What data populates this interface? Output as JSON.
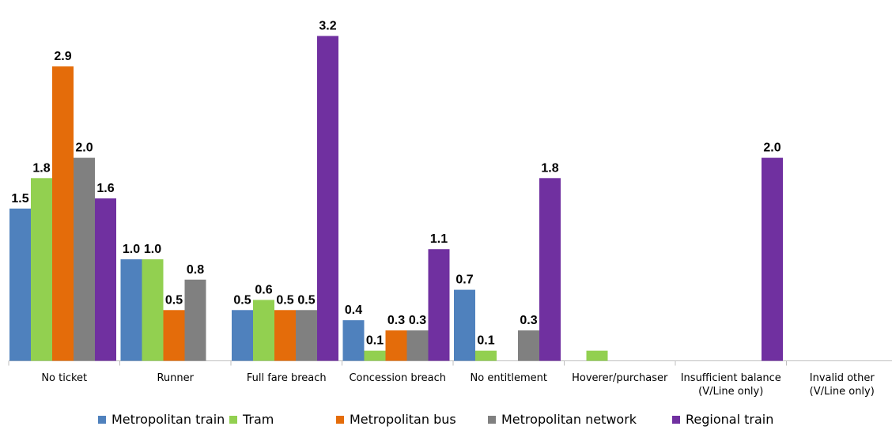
{
  "chart_data": {
    "type": "bar",
    "title": "",
    "xlabel": "",
    "ylabel": "",
    "ylim": [
      0,
      3.2
    ],
    "grid": false,
    "legend_position": "bottom",
    "categories": [
      [
        "No ticket"
      ],
      [
        "Runner"
      ],
      [
        "Full fare breach"
      ],
      [
        "Concession breach"
      ],
      [
        "No entitlement"
      ],
      [
        "Hoverer/purchaser"
      ],
      [
        "Insufficient balance",
        "(V/Line only)"
      ],
      [
        "Invalid other",
        "(V/Line only)"
      ]
    ],
    "series": [
      {
        "name": "Metropolitan train",
        "color": "#4f81bd",
        "values": [
          1.5,
          1.0,
          0.5,
          0.4,
          0.7,
          null,
          null,
          null
        ],
        "labels": [
          "1.5",
          "1.0",
          "0.5",
          "0.4",
          "0.7",
          "",
          "",
          ""
        ]
      },
      {
        "name": "Tram",
        "color": "#92d050",
        "values": [
          1.8,
          1.0,
          0.6,
          0.1,
          0.1,
          0.1,
          null,
          null
        ],
        "labels": [
          "1.8",
          "1.0",
          "0.6",
          "0.1",
          "0.1",
          "",
          "",
          ""
        ]
      },
      {
        "name": "Metropolitan bus",
        "color": "#e46c0a",
        "values": [
          2.9,
          0.5,
          0.5,
          0.3,
          null,
          null,
          null,
          null
        ],
        "labels": [
          "2.9",
          "0.5",
          "0.5",
          "0.3",
          "",
          "",
          "",
          ""
        ]
      },
      {
        "name": "Metropolitan network",
        "color": "#808080",
        "values": [
          2.0,
          0.8,
          0.5,
          0.3,
          0.3,
          null,
          null,
          null
        ],
        "labels": [
          "2.0",
          "0.8",
          "0.5",
          "0.3",
          "0.3",
          "",
          "",
          ""
        ]
      },
      {
        "name": "Regional train",
        "color": "#7030a0",
        "values": [
          1.6,
          null,
          3.2,
          1.1,
          1.8,
          null,
          2.0,
          null
        ],
        "labels": [
          "1.6",
          "",
          "3.2",
          "1.1",
          "1.8",
          "",
          "2.0",
          ""
        ]
      }
    ]
  }
}
